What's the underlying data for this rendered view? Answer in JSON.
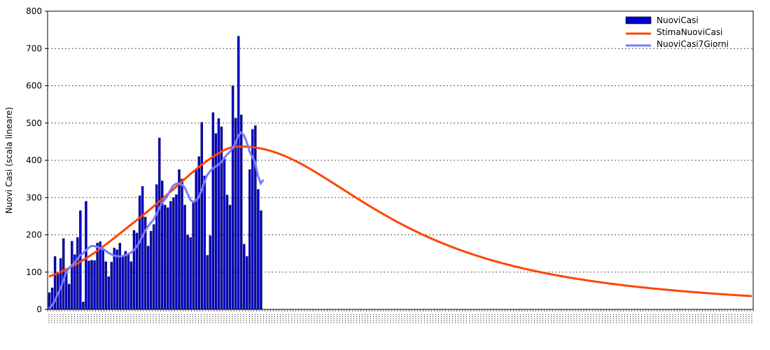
{
  "chart_data": {
    "type": "bar",
    "ylabel": "Nuovi Casi (scala lineare)",
    "ylim": [
      0,
      800
    ],
    "yticks": [
      0,
      100,
      200,
      300,
      400,
      500,
      600,
      700,
      800
    ],
    "grid": true,
    "legend_position": "top-right",
    "colors": {
      "bars": "#0000cc",
      "estimate": "#ff4500",
      "avg7": "#7b7bff"
    },
    "series": [
      {
        "name": "NuoviCasi",
        "kind": "bar",
        "values": [
          45,
          58,
          142,
          100,
          137,
          190,
          105,
          68,
          183,
          147,
          193,
          265,
          20,
          290,
          130,
          132,
          131,
          178,
          182,
          160,
          128,
          88,
          127,
          165,
          160,
          178,
          145,
          156,
          147,
          128,
          212,
          205,
          305,
          330,
          248,
          170,
          210,
          228,
          335,
          460,
          345,
          280,
          273,
          290,
          300,
          308,
          375,
          350,
          280,
          200,
          193,
          290,
          375,
          410,
          502,
          358,
          145,
          198,
          528,
          472,
          512,
          490,
          403,
          307,
          280,
          600,
          513,
          733,
          522,
          175,
          142,
          375,
          483,
          493,
          322,
          265
        ]
      },
      {
        "name": "StimaNuoviCasi",
        "kind": "line",
        "values": [
          88,
          90.83,
          93.8,
          96.91,
          100.16,
          103.56,
          107.11,
          110.82,
          114.69,
          118.71,
          122.9,
          127.25,
          131.76,
          136.44,
          141.27,
          146.26,
          151.4,
          156.69,
          162.11,
          167.67,
          173.33,
          179.09,
          184.94,
          190.87,
          196.84,
          202.85,
          208.88,
          214.92,
          220.95,
          226.96,
          232.97,
          238.98,
          245.02,
          251.09,
          257.21,
          263.39,
          269.63,
          275.94,
          282.32,
          288.78,
          295.32,
          301.93,
          308.6,
          315.33,
          322.1,
          328.89,
          335.69,
          342.47,
          349.22,
          355.89,
          362.45,
          368.88,
          375.15,
          381.24,
          387.14,
          392.86,
          398.39,
          403.73,
          408.87,
          413.8,
          418.49,
          422.89,
          426.92,
          430.46,
          433.34,
          435.34,
          436.2,
          436.6,
          436.79,
          436.75,
          436.5,
          436.02,
          435.32,
          434.39,
          433.23,
          431.84,
          430.24,
          428.42,
          426.39,
          424.15,
          421.7,
          419.06,
          416.23,
          413.21,
          410.01,
          406.64,
          403.12,
          399.44,
          395.62,
          391.67,
          387.6,
          383.41,
          379.12,
          374.73,
          370.26,
          365.71,
          361.09,
          356.42,
          351.7,
          346.93,
          342.14,
          337.32,
          332.49,
          327.64,
          322.8,
          317.96,
          313.13,
          308.31,
          303.52,
          298.74,
          294,
          289.29,
          284.62,
          279.98,
          275.39,
          270.84,
          266.34,
          261.89,
          257.49,
          253.15,
          248.86,
          244.62,
          240.45,
          236.33,
          232.27,
          228.28,
          224.34,
          220.47,
          216.65,
          212.9,
          209.22,
          205.59,
          202.02,
          198.52,
          195.08,
          191.7,
          188.38,
          185.12,
          181.92,
          178.78,
          175.71,
          172.69,
          169.72,
          166.81,
          163.96,
          161.16,
          158.42,
          155.73,
          153.09,
          150.51,
          147.97,
          145.49,
          143.05,
          140.66,
          138.32,
          136.03,
          133.78,
          131.58,
          129.42,
          127.3,
          125.22,
          123.19,
          121.19,
          119.24,
          117.32,
          115.44,
          113.6,
          111.79,
          110.02,
          108.28,
          106.58,
          104.91,
          103.27,
          101.66,
          100.08,
          98.54,
          97.02,
          95.53,
          94.07,
          92.64,
          91.24,
          89.86,
          88.51,
          87.18,
          85.88,
          84.6,
          83.35,
          82.12,
          80.91,
          79.73,
          78.57,
          77.43,
          76.31,
          75.21,
          74.13,
          73.07,
          72.03,
          71.01,
          70,
          69.02,
          68.05,
          67.1,
          66.17,
          65.25,
          64.35,
          63.47,
          62.6,
          61.75,
          60.91,
          60.08,
          59.27,
          58.47,
          57.69,
          56.92,
          56.16,
          55.41,
          54.67,
          53.95,
          53.24,
          52.54,
          51.85,
          51.17,
          50.5,
          49.84,
          49.19,
          48.55,
          47.92,
          47.3,
          46.69,
          46.09,
          45.5,
          44.91,
          44.34,
          43.77,
          43.21,
          42.66,
          42.12,
          41.58,
          41.05,
          40.53,
          40.02,
          39.51,
          39.01,
          38.52,
          38.04,
          37.56,
          37.09,
          36.62,
          36.16,
          35.71
        ]
      },
      {
        "name": "NuoviCasi7Giorni",
        "kind": "line",
        "values": [
          2,
          10,
          22,
          40,
          55,
          75,
          98,
          110,
          118,
          125,
          135,
          145,
          150,
          158,
          165,
          170,
          170,
          168,
          165,
          163,
          158,
          152,
          148,
          145,
          143,
          142,
          143,
          145,
          148,
          152,
          158,
          168,
          180,
          195,
          210,
          222,
          232,
          240,
          255,
          270,
          285,
          295,
          305,
          320,
          332,
          337,
          338,
          335,
          328,
          312,
          295,
          288,
          292,
          300,
          318,
          340,
          360,
          370,
          378,
          383,
          388,
          395,
          405,
          415,
          422,
          432,
          445,
          465,
          475,
          468,
          450,
          425,
          410,
          395,
          360,
          338,
          348
        ]
      }
    ],
    "note_xticks": "x-axis date tick labels are illegible in the original"
  }
}
